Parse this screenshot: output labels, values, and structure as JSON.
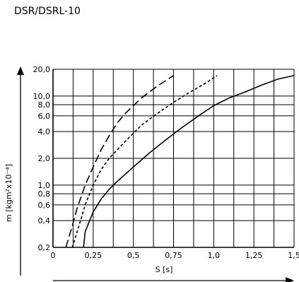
{
  "chart_data": {
    "type": "line",
    "title": "DSR/DSRL-10",
    "xlabel": "S [s]",
    "ylabel": "m [kgm²x10⁻⁴]",
    "xlim": [
      0,
      1.5
    ],
    "ylim": [
      0.2,
      20.0
    ],
    "yscale": "log",
    "grid": true,
    "xticks": [
      {
        "v": 0,
        "label": "0"
      },
      {
        "v": 0.25,
        "label": "0,25"
      },
      {
        "v": 0.5,
        "label": "0,5"
      },
      {
        "v": 0.75,
        "label": "0,75"
      },
      {
        "v": 1.0,
        "label": "1,0"
      },
      {
        "v": 1.25,
        "label": "1,25"
      },
      {
        "v": 1.5,
        "label": "1,5"
      }
    ],
    "yticks": [
      {
        "v": 0.2,
        "label": "0,2"
      },
      {
        "v": 0.4,
        "label": "0,4"
      },
      {
        "v": 0.6,
        "label": "0,6"
      },
      {
        "v": 0.8,
        "label": "0,8"
      },
      {
        "v": 1.0,
        "label": "1,0"
      },
      {
        "v": 2.0,
        "label": "2,0"
      },
      {
        "v": 4.0,
        "label": "4,0"
      },
      {
        "v": 6.0,
        "label": "6,0"
      },
      {
        "v": 8.0,
        "label": "8,0"
      },
      {
        "v": 10.0,
        "label": "10,0"
      },
      {
        "v": 20.0,
        "label": "20,0"
      }
    ],
    "x_gridlines": [
      0,
      0.125,
      0.25,
      0.375,
      0.5,
      0.625,
      0.75,
      0.875,
      1.0,
      1.125,
      1.25,
      1.375,
      1.5
    ],
    "series": [
      {
        "style": "long-dash",
        "points": [
          [
            0.08,
            0.2
          ],
          [
            0.12,
            0.35
          ],
          [
            0.15,
            0.55
          ],
          [
            0.2,
            1.0
          ],
          [
            0.25,
            1.6
          ],
          [
            0.3,
            2.5
          ],
          [
            0.35,
            3.6
          ],
          [
            0.4,
            5.0
          ],
          [
            0.45,
            6.4
          ],
          [
            0.55,
            9.5
          ],
          [
            0.65,
            13.0
          ],
          [
            0.75,
            17.0
          ]
        ]
      },
      {
        "style": "short-dash",
        "points": [
          [
            0.12,
            0.2
          ],
          [
            0.15,
            0.3
          ],
          [
            0.18,
            0.45
          ],
          [
            0.2,
            0.6
          ],
          [
            0.25,
            1.0
          ],
          [
            0.3,
            1.5
          ],
          [
            0.35,
            2.0
          ],
          [
            0.45,
            3.1
          ],
          [
            0.55,
            4.7
          ],
          [
            0.65,
            6.4
          ],
          [
            0.75,
            8.5
          ],
          [
            0.85,
            11.0
          ],
          [
            0.95,
            14.0
          ],
          [
            1.02,
            17.0
          ]
        ]
      },
      {
        "style": "solid",
        "points": [
          [
            0.19,
            0.2
          ],
          [
            0.2,
            0.3
          ],
          [
            0.25,
            0.5
          ],
          [
            0.3,
            0.7
          ],
          [
            0.35,
            0.9
          ],
          [
            0.4,
            1.1
          ],
          [
            0.5,
            1.6
          ],
          [
            0.6,
            2.3
          ],
          [
            0.7,
            3.2
          ],
          [
            0.8,
            4.4
          ],
          [
            0.9,
            5.9
          ],
          [
            1.0,
            7.8
          ],
          [
            1.1,
            9.6
          ],
          [
            1.2,
            11.2
          ],
          [
            1.3,
            13.3
          ],
          [
            1.4,
            15.5
          ],
          [
            1.5,
            17.0
          ]
        ]
      }
    ]
  }
}
